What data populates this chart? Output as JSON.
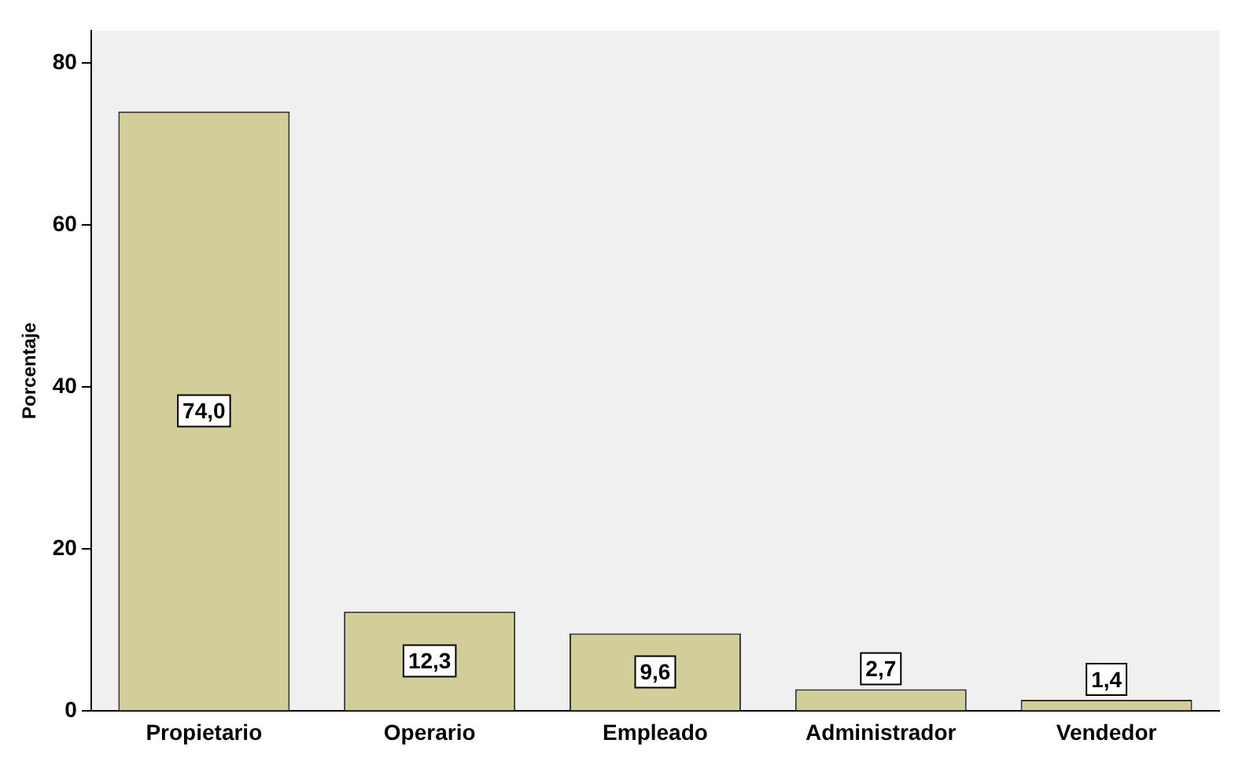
{
  "chart_data": {
    "type": "bar",
    "ylabel": "Porcentaje",
    "categories": [
      "Propietario",
      "Operario",
      "Empleado",
      "Administrador",
      "Vendedor"
    ],
    "values": [
      74.0,
      12.3,
      9.6,
      2.7,
      1.4
    ],
    "value_labels": [
      "74,0",
      "12,3",
      "9,6",
      "2,7",
      "1,4"
    ],
    "color": "#d3ce99",
    "ylim": [
      0,
      84
    ],
    "yticks": [
      0,
      20,
      40,
      60,
      80
    ],
    "grid": false,
    "legend": false
  }
}
